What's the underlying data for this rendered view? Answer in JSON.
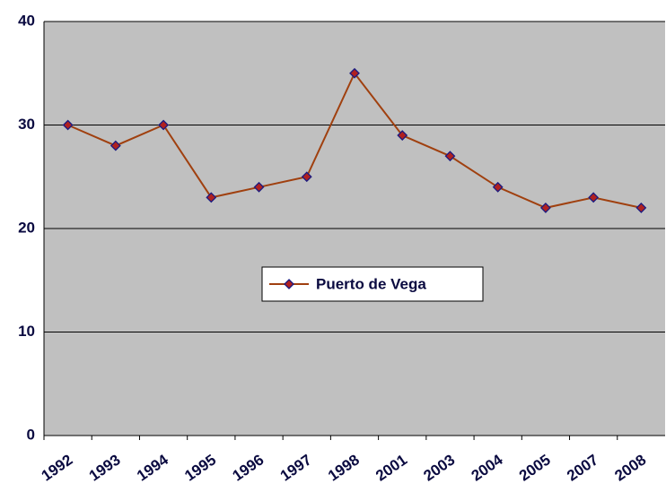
{
  "chart_data": {
    "type": "line",
    "categories": [
      "1992",
      "1993",
      "1994",
      "1995",
      "1996",
      "1997",
      "1998",
      "2001",
      "2003",
      "2004",
      "2005",
      "2007",
      "2008"
    ],
    "series": [
      {
        "name": "Puerto de Vega",
        "color": "#a0400f",
        "marker_fill": "#b02020",
        "marker_stroke": "#1a1a80",
        "values": [
          30,
          28,
          30,
          23,
          24,
          25,
          35,
          29,
          27,
          24,
          22,
          23,
          22
        ]
      }
    ],
    "ylim": [
      0,
      40
    ],
    "yticks": [
      0,
      10,
      20,
      30,
      40
    ],
    "grid": true,
    "plot_background": "#c0c0c0",
    "legend": "center"
  }
}
